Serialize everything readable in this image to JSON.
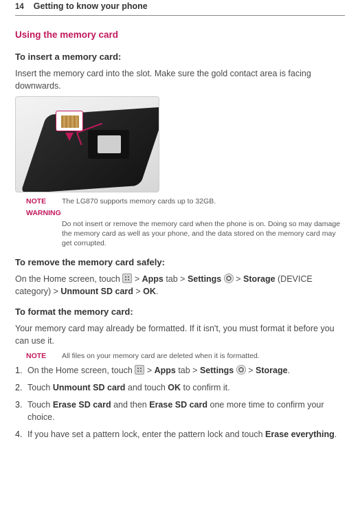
{
  "colors": {
    "accent": "#c2185b",
    "text": "#4a4a4a",
    "heading": "#333333"
  },
  "header": {
    "page": "14",
    "chapter": "Getting to know your phone"
  },
  "section_title": "Using the memory card",
  "insert_heading": "To insert a memory card:",
  "insert_text": "Insert the memory card into the slot. Make sure the gold contact area is facing downwards.",
  "note_label": "NOTE",
  "note_text": "The LG870 supports memory cards up to 32GB.",
  "warning_label": "WARNING",
  "warning_text": "Do not insert or remove the memory card when the phone is on. Doing so may damage the memory card as well as your phone, and the data stored on the memory card may get corrupted.",
  "remove_heading": "To remove the memory card safely:",
  "remove_text_1": "On the Home screen, touch ",
  "remove_text_2": " > ",
  "remove_apps": "Apps",
  "remove_tab": " tab > ",
  "remove_settings": "Settings",
  "remove_text_3": " > ",
  "remove_storage": "Storage",
  "remove_text_4": " (DEVICE category) > ",
  "remove_unmount": "Unmount SD card",
  "remove_text_5": " > ",
  "remove_ok": "OK",
  "remove_text_6": ".",
  "format_heading": "To format the memory card:",
  "format_intro": "Your memory card may already be formatted. If it isn't, you must format it before you can use it.",
  "format_note": "All files on your memory card are deleted when it is formatted.",
  "steps": {
    "s1_a": "On the Home screen, touch ",
    "s1_b": " > ",
    "s1_apps": "Apps",
    "s1_tab": " tab > ",
    "s1_settings": "Settings",
    "s1_c": " > ",
    "s1_storage": "Storage",
    "s1_d": ".",
    "s2_a": "Touch ",
    "s2_unmount": "Unmount SD card",
    "s2_b": " and touch ",
    "s2_ok": "OK",
    "s2_c": " to confirm it.",
    "s3_a": "Touch ",
    "s3_erase1": "Erase SD card",
    "s3_b": " and then ",
    "s3_erase2": "Erase SD card",
    "s3_c": " one more time to confirm your choice.",
    "s4_a": "If you have set a pattern lock, enter the pattern lock and touch ",
    "s4_erase": "Erase everything",
    "s4_b": "."
  }
}
